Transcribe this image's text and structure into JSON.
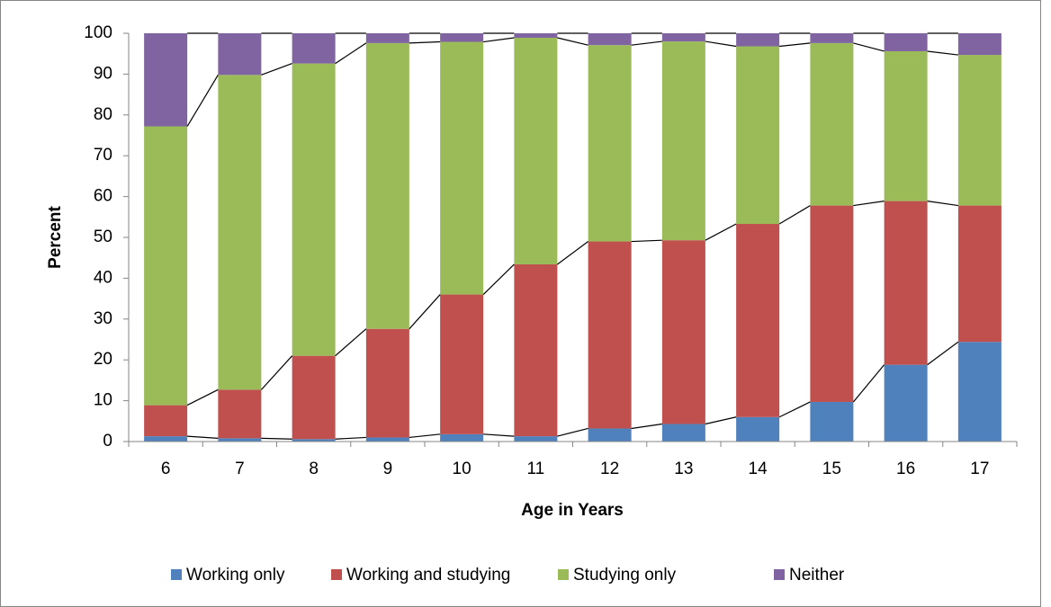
{
  "chart_data": {
    "type": "stacked-bar",
    "x_label": "Age in Years",
    "y_label": "Percent",
    "categories": [
      "6",
      "7",
      "8",
      "9",
      "10",
      "11",
      "12",
      "13",
      "14",
      "15",
      "16",
      "17"
    ],
    "series": [
      {
        "name": "Working only",
        "color": "#4f81bd",
        "values": [
          1.3,
          0.8,
          0.6,
          1.0,
          1.8,
          1.3,
          3.2,
          4.3,
          6.0,
          9.7,
          18.8,
          24.4
        ]
      },
      {
        "name": "Working and studying",
        "color": "#c0504d",
        "values": [
          7.6,
          11.9,
          20.4,
          26.6,
          34.2,
          42.1,
          45.8,
          45.0,
          47.3,
          48.1,
          40.1,
          33.4
        ]
      },
      {
        "name": "Studying only",
        "color": "#9bbb59",
        "values": [
          68.3,
          77.1,
          71.6,
          70.0,
          61.9,
          55.5,
          48.1,
          48.7,
          43.5,
          39.8,
          36.7,
          36.9
        ]
      },
      {
        "name": "Neither",
        "color": "#8064a2",
        "values": [
          22.8,
          10.2,
          7.4,
          2.4,
          2.1,
          1.1,
          2.9,
          2.0,
          3.2,
          2.4,
          4.4,
          5.3
        ]
      }
    ],
    "ylim": [
      0,
      100
    ],
    "yticks": [
      0,
      10,
      20,
      30,
      40,
      50,
      60,
      70,
      80,
      90,
      100
    ],
    "legend": "bottom",
    "series_lines": true
  }
}
